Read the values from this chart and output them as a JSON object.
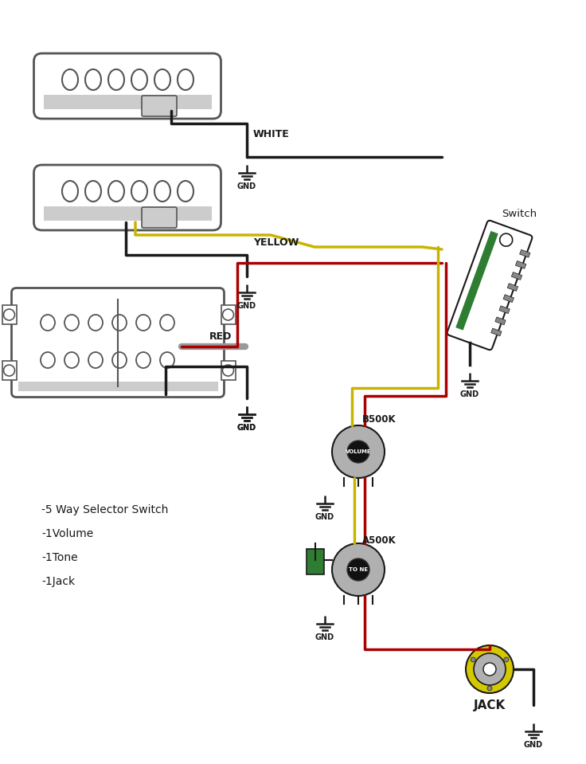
{
  "bg_color": "#ffffff",
  "fig_width": 7.36,
  "fig_height": 9.59,
  "labels": {
    "white": "WHITE",
    "yellow": "YELLOW",
    "red": "RED",
    "switch": "Switch",
    "b500k": "B500K",
    "volume": "VOLUME",
    "a500k": "A500K",
    "tone": "TO NE",
    "jack": "JACK",
    "gnd": "GND",
    "info": "-5 Way Selector Switch\n-1Volume\n-1Tone\n-1Jack"
  },
  "colors": {
    "black": "#1a1a1a",
    "yellow_wire": "#c8b400",
    "red_wire": "#aa0000",
    "green_cap": "#2e7d32",
    "gray_wire": "#999999",
    "pickup_border": "#555555",
    "knob_color": "#111111",
    "pot_color": "#b0b0b0",
    "switch_green": "#2e7d32",
    "jack_yellow": "#d4c800",
    "white_fill": "#ffffff",
    "light_gray": "#e0e0e0"
  }
}
